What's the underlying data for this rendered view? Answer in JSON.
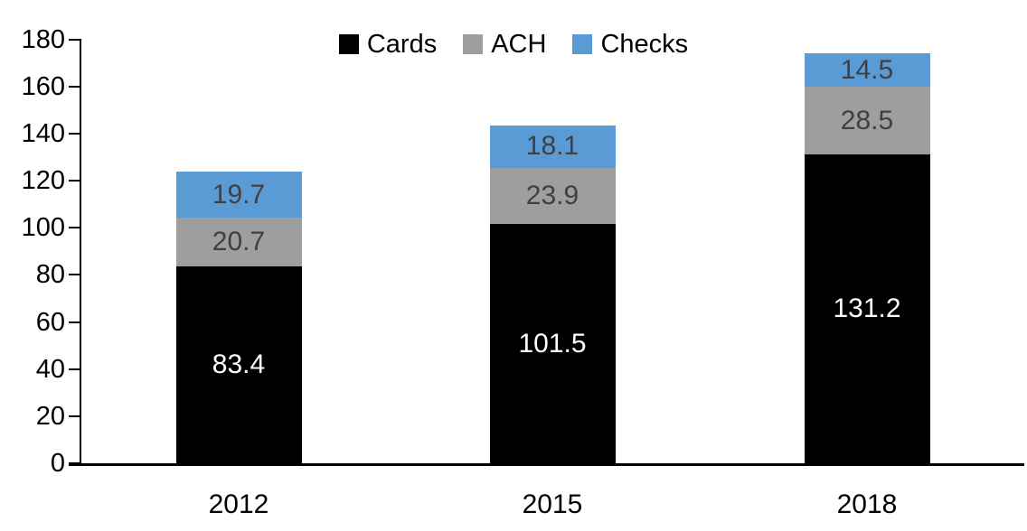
{
  "chart_data": {
    "type": "bar",
    "stacked": true,
    "title": "",
    "xlabel": "",
    "ylabel": "",
    "categories": [
      "2012",
      "2015",
      "2018"
    ],
    "series": [
      {
        "name": "Cards",
        "color": "#000000",
        "label_color": "#ffffff",
        "values": [
          83.4,
          101.5,
          131.2
        ]
      },
      {
        "name": "ACH",
        "color": "#9e9e9e",
        "label_color": "#404040",
        "values": [
          20.7,
          23.9,
          28.5
        ]
      },
      {
        "name": "Checks",
        "color": "#5b9bd5",
        "label_color": "#404040",
        "values": [
          19.7,
          18.1,
          14.5
        ]
      }
    ],
    "totals": [
      123.8,
      143.5,
      174.2
    ],
    "ylim": [
      0,
      180
    ],
    "ytick_step": 20,
    "yticks": [
      0,
      20,
      40,
      60,
      80,
      100,
      120,
      140,
      160,
      180
    ],
    "grid": false,
    "legend_position": "top-center",
    "value_labels": "inside-center",
    "axis_color": "#000000",
    "background_color": "#ffffff"
  }
}
